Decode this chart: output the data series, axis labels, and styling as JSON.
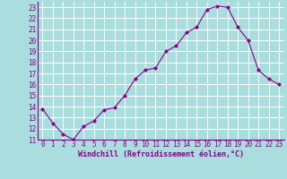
{
  "x": [
    0,
    1,
    2,
    3,
    4,
    5,
    6,
    7,
    8,
    9,
    10,
    11,
    12,
    13,
    14,
    15,
    16,
    17,
    18,
    19,
    20,
    21,
    22,
    23
  ],
  "y": [
    13.8,
    12.5,
    11.5,
    11.0,
    12.2,
    12.7,
    13.7,
    13.9,
    15.0,
    16.5,
    17.3,
    17.5,
    19.0,
    19.5,
    20.7,
    21.2,
    22.8,
    23.1,
    23.0,
    21.2,
    20.0,
    17.3,
    16.5,
    16.0
  ],
  "xlabel": "Windchill (Refroidissement éolien,°C)",
  "ylim": [
    11,
    23.5
  ],
  "ytick_min": 11,
  "ytick_max": 23,
  "xticks": [
    0,
    1,
    2,
    3,
    4,
    5,
    6,
    7,
    8,
    9,
    10,
    11,
    12,
    13,
    14,
    15,
    16,
    17,
    18,
    19,
    20,
    21,
    22,
    23
  ],
  "line_color": "#880088",
  "marker_color": "#880088",
  "bg_color": "#aadddd",
  "grid_color": "#ffffff",
  "xlabel_color": "#880088",
  "tick_label_color": "#880088",
  "border_color": "#880088"
}
